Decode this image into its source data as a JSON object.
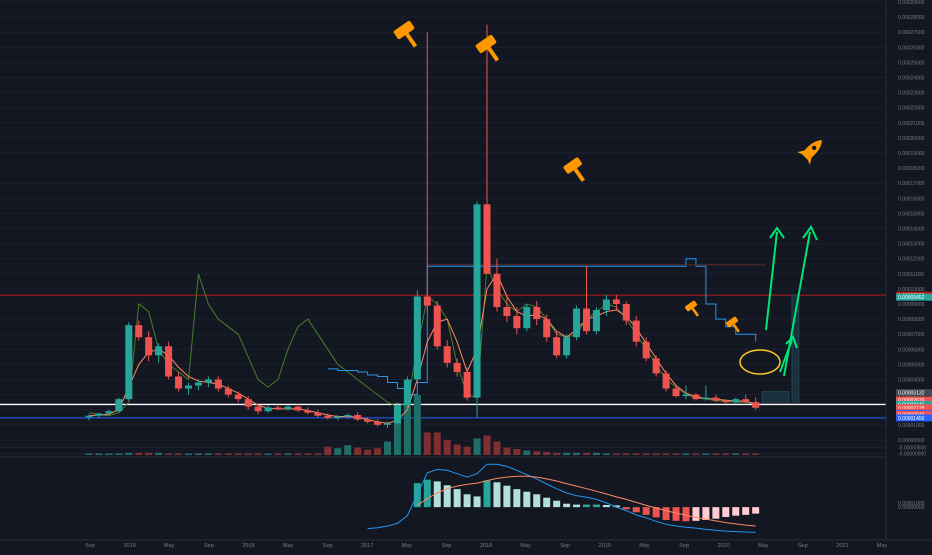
{
  "chart_data": {
    "type": "candlestick",
    "title": "",
    "colors": {
      "background": "#131722",
      "up": "#26a69a",
      "down": "#ef5350",
      "up_volume": "#1f6e68",
      "down_volume": "#7f2f31",
      "hist_up_strong": "#26a69a",
      "hist_up_weak": "#b2dfdb",
      "hist_down_strong": "#ef5350",
      "hist_down_weak": "#ffcdd2",
      "resistance_line": "#b71c1c",
      "support_white": "#ffffff",
      "support_blue": "#2962ff",
      "green_arrows": "#00e676",
      "annotation_orange": "#ff9800"
    },
    "x_axis_labels": [
      "Sep",
      "2019",
      "May",
      "Sep",
      "2018",
      "May",
      "Sep",
      "2017",
      "May",
      "Sep",
      "2018",
      "May",
      "Sep",
      "2019",
      "May",
      "Sep",
      "2020",
      "May",
      "Sep",
      "2021",
      "May"
    ],
    "y_axis": {
      "scale": "linear",
      "ylim": [
        -1e-05,
        0.00029
      ],
      "ticks": [
        "0.00029000",
        "0.00028000",
        "0.00027000",
        "0.00026000",
        "0.00025000",
        "0.00024000",
        "0.00023000",
        "0.00022000",
        "0.00021000",
        "0.00020000",
        "0.00019000",
        "0.00018000",
        "0.00017000",
        "0.00016000",
        "0.00015000",
        "0.00014000",
        "0.00013000",
        "0.00012000",
        "0.00011000",
        "0.00010000",
        "0.00009000",
        "0.00008000",
        "0.00007000",
        "0.00006000",
        "0.00005000",
        "0.00004000",
        "0.00003000",
        "0.00002000",
        "0.00001000",
        "0.00000000",
        "-0.00000500",
        "-0.00000900"
      ]
    },
    "price_badges": [
      {
        "label": "0.00009586",
        "value": 9.586e-05,
        "color": "#b71c1c"
      },
      {
        "label": "0.00009452",
        "value": 9.452e-05,
        "color": "#26a69a"
      },
      {
        "label": "0.00003132",
        "value": 3.132e-05,
        "color": "#444a55"
      },
      {
        "label": "0.00002639",
        "value": 2.639e-05,
        "color": "#ef5350"
      },
      {
        "label": "0.00002348",
        "value": 2.348e-05,
        "color": "#ffffff"
      },
      {
        "label": "0.00002345",
        "value": 2.345e-05,
        "color": "#26a69a"
      },
      {
        "label": "0.00002128",
        "value": 2.128e-05,
        "color": "#ef5350"
      },
      {
        "label": "102.1%",
        "value": 1.82e-05,
        "color": "#ef5350"
      },
      {
        "label": "0.00002127",
        "value": 1.75e-05,
        "color": "#2962ff"
      },
      {
        "label": "0.00002046",
        "value": 1.68e-05,
        "color": "#ef5350"
      },
      {
        "label": "0.00001456",
        "value": 1.456e-05,
        "color": "#2962ff"
      }
    ],
    "horizontal_lines": [
      {
        "value": 9.586e-05,
        "color": "#b71c1c"
      },
      {
        "value": 2.348e-05,
        "color": "#ffffff"
      },
      {
        "value": 1.456e-05,
        "color": "#2962ff"
      }
    ],
    "candles": [
      [
        1.5e-05,
        1.7e-05,
        1.3e-05,
        1.6e-05
      ],
      [
        1.6e-05,
        1.8e-05,
        1.45e-05,
        1.75e-05
      ],
      [
        1.75e-05,
        2e-05,
        1.65e-05,
        1.9e-05
      ],
      [
        1.9e-05,
        2.8e-05,
        1.8e-05,
        2.7e-05
      ],
      [
        2.7e-05,
        7.8e-05,
        2.6e-05,
        7.6e-05
      ],
      [
        7.6e-05,
        7.9e-05,
        6.6e-05,
        6.8e-05
      ],
      [
        6.8e-05,
        7.2e-05,
        5.2e-05,
        5.6e-05
      ],
      [
        5.6e-05,
        6.4e-05,
        5.1e-05,
        6.2e-05
      ],
      [
        6.2e-05,
        6.5e-05,
        4e-05,
        4.2e-05
      ],
      [
        4.2e-05,
        4.5e-05,
        3.2e-05,
        3.4e-05
      ],
      [
        3.4e-05,
        3.8e-05,
        3e-05,
        3.6e-05
      ],
      [
        3.6e-05,
        4e-05,
        3.3e-05,
        3.8e-05
      ],
      [
        3.8e-05,
        4.2e-05,
        3.5e-05,
        4e-05
      ],
      [
        4e-05,
        4.2e-05,
        3.2e-05,
        3.4e-05
      ],
      [
        3.4e-05,
        3.6e-05,
        2.8e-05,
        3e-05
      ],
      [
        3e-05,
        3.2e-05,
        2.5e-05,
        2.7e-05
      ],
      [
        2.7e-05,
        2.9e-05,
        2e-05,
        2.2e-05
      ],
      [
        2.2e-05,
        2.4e-05,
        1.7e-05,
        1.9e-05
      ],
      [
        1.9e-05,
        2.3e-05,
        1.8e-05,
        2.15e-05
      ],
      [
        2.15e-05,
        2.35e-05,
        1.95e-05,
        2.05e-05
      ],
      [
        2.05e-05,
        2.3e-05,
        1.95e-05,
        2.2e-05
      ],
      [
        2.2e-05,
        2.4e-05,
        1.85e-05,
        1.95e-05
      ],
      [
        1.95e-05,
        2.15e-05,
        1.7e-05,
        1.8e-05
      ],
      [
        1.8e-05,
        2e-05,
        1.5e-05,
        1.6e-05
      ],
      [
        1.6e-05,
        1.75e-05,
        1.35e-05,
        1.45e-05
      ],
      [
        1.45e-05,
        1.65e-05,
        1.3e-05,
        1.55e-05
      ],
      [
        1.55e-05,
        1.75e-05,
        1.4e-05,
        1.65e-05
      ],
      [
        1.65e-05,
        1.85e-05,
        1.25e-05,
        1.35e-05
      ],
      [
        1.35e-05,
        1.5e-05,
        1.1e-05,
        1.2e-05
      ],
      [
        1.2e-05,
        1.35e-05,
        9e-06,
        1e-05
      ],
      [
        1e-05,
        1.2e-05,
        8e-06,
        1.1e-05
      ],
      [
        1.1e-05,
        2.5e-05,
        1e-05,
        2.3e-05
      ],
      [
        2.3e-05,
        4.2e-05,
        2e-05,
        4e-05
      ],
      [
        4e-05,
        9.9e-05,
        3.8e-05,
        9.5e-05
      ],
      [
        9.5e-05,
        0.00027,
        8.5e-05,
        8.9e-05
      ],
      [
        8.9e-05,
        9.2e-05,
        6e-05,
        6.2e-05
      ],
      [
        6.2e-05,
        6.6e-05,
        4.8e-05,
        5.1e-05
      ],
      [
        5.1e-05,
        5.4e-05,
        4.2e-05,
        4.5e-05
      ],
      [
        4.5e-05,
        4.8e-05,
        2.6e-05,
        2.8e-05
      ],
      [
        2.8e-05,
        0.000158,
        1.5e-05,
        0.000156
      ],
      [
        0.000156,
        0.000275,
        0.00011,
        0.00011
      ],
      [
        0.00011,
        0.00012,
        8.5e-05,
        8.8e-05
      ],
      [
        8.8e-05,
        9.6e-05,
        7.8e-05,
        8.2e-05
      ],
      [
        8.2e-05,
        8.8e-05,
        7e-05,
        7.4e-05
      ],
      [
        7.4e-05,
        9e-05,
        7.2e-05,
        8.8e-05
      ],
      [
        8.8e-05,
        9.2e-05,
        7.6e-05,
        8e-05
      ],
      [
        8e-05,
        8.3e-05,
        6.5e-05,
        6.8e-05
      ],
      [
        6.8e-05,
        7.2e-05,
        5.4e-05,
        5.6e-05
      ],
      [
        5.6e-05,
        7e-05,
        5.4e-05,
        6.8e-05
      ],
      [
        6.8e-05,
        8.9e-05,
        6.6e-05,
        8.7e-05
      ],
      [
        8.7e-05,
        0.000115,
        7e-05,
        7.2e-05
      ],
      [
        7.2e-05,
        8.8e-05,
        7e-05,
        8.6e-05
      ],
      [
        8.6e-05,
        9.6e-05,
        8.2e-05,
        9.3e-05
      ],
      [
        9.3e-05,
        9.6e-05,
        8.6e-05,
        9e-05
      ],
      [
        9e-05,
        9.2e-05,
        7.6e-05,
        7.9e-05
      ],
      [
        7.9e-05,
        8.2e-05,
        6.2e-05,
        6.5e-05
      ],
      [
        6.5e-05,
        6.8e-05,
        5.2e-05,
        5.4e-05
      ],
      [
        5.4e-05,
        5.6e-05,
        4.2e-05,
        4.4e-05
      ],
      [
        4.4e-05,
        4.6e-05,
        3.2e-05,
        3.4e-05
      ],
      [
        3.4e-05,
        3.6e-05,
        2.8e-05,
        2.9e-05
      ],
      [
        2.9e-05,
        3.6e-05,
        2.7e-05,
        3e-05
      ],
      [
        3e-05,
        3.1e-05,
        2.6e-05,
        2.7e-05
      ],
      [
        2.7e-05,
        3.6e-05,
        2.6e-05,
        2.8e-05
      ],
      [
        2.8e-05,
        3e-05,
        2.5e-05,
        2.6e-05
      ],
      [
        2.6e-05,
        2.7e-05,
        2.4e-05,
        2.5e-05
      ],
      [
        2.5e-05,
        2.8e-05,
        2.4e-05,
        2.7e-05
      ],
      [
        2.7e-05,
        3e-05,
        2.4e-05,
        2.5e-05
      ],
      [
        2.5e-05,
        2.8e-05,
        2e-05,
        2.13e-05
      ]
    ],
    "forecast_boxes": [
      {
        "start_index": 68,
        "end_index": 70,
        "low": 2.5e-05,
        "high": 3.2e-05
      },
      {
        "start_index": 71,
        "end_index": 71,
        "low": 2.5e-05,
        "high": 9.6e-05
      }
    ],
    "indicator_lines": [
      {
        "name": "",
        "color": "#4a7c2a",
        "values": [
          1.8e-05,
          1.7e-05,
          1.6e-05,
          1.8e-05,
          2.5e-05,
          9e-05,
          8.5e-05,
          6e-05,
          5e-05,
          4.5e-05,
          4e-05,
          0.00011,
          9e-05,
          8e-05,
          7.5e-05,
          7e-05,
          5.5e-05,
          4e-05,
          3.5e-05,
          4e-05,
          6e-05,
          7.5e-05,
          8e-05,
          7e-05,
          6e-05,
          5e-05,
          4.5e-05,
          4e-05,
          3.5e-05,
          3e-05,
          2.5e-05,
          2.2e-05,
          2.5e-05,
          6e-05,
          9.5e-05,
          9e-05,
          8e-05,
          5e-05,
          3e-05,
          2.8e-05,
          0.000115,
          0.0001,
          9e-05,
          8.5e-05,
          9e-05,
          8.8e-05,
          8e-05,
          7e-05,
          6.8e-05,
          7e-05,
          8e-05,
          8.5e-05,
          9e-05,
          8.8e-05,
          8e-05,
          7e-05,
          6e-05,
          5e-05,
          4e-05,
          3.5e-05,
          3e-05,
          2.8e-05,
          2.7e-05,
          2.6e-05,
          2.55e-05,
          2.5e-05,
          2.5e-05,
          2.4e-05
        ]
      },
      {
        "name": "",
        "color": "#2196f3",
        "values": [
          null,
          null,
          null,
          null,
          null,
          null,
          null,
          null,
          null,
          null,
          null,
          null,
          null,
          null,
          null,
          null,
          null,
          null,
          null,
          null,
          null,
          null,
          null,
          null,
          4.7e-05,
          4.6e-05,
          4.6e-05,
          4.5e-05,
          4.3e-05,
          4.2e-05,
          3.8e-05,
          3.4e-05,
          3e-05,
          3.8e-05,
          0.000115,
          0.000115,
          0.000115,
          0.000115,
          0.000115,
          0.000115,
          0.000115,
          0.000115,
          0.000115,
          0.000115,
          0.000115,
          0.000115,
          0.000115,
          0.000115,
          0.000115,
          0.000115,
          0.000115,
          0.000115,
          0.000115,
          0.000115,
          0.000115,
          0.000115,
          0.000115,
          0.000115,
          0.000115,
          0.000115,
          0.00012,
          0.000115,
          9e-05,
          8e-05,
          7.5e-05,
          7e-05,
          7e-05,
          6.5e-05
        ]
      },
      {
        "name": "",
        "color": "#ff8a65",
        "values": [
          1.6e-05,
          1.65e-05,
          1.7e-05,
          2e-05,
          3.5e-05,
          5e-05,
          5.8e-05,
          6e-05,
          5.6e-05,
          4.8e-05,
          4.2e-05,
          3.9e-05,
          3.8e-05,
          3.7e-05,
          3.4e-05,
          3.1e-05,
          2.7e-05,
          2.3e-05,
          2.1e-05,
          2.05e-05,
          2.05e-05,
          2.05e-05,
          1.95e-05,
          1.8e-05,
          1.65e-05,
          1.55e-05,
          1.55e-05,
          1.5e-05,
          1.35e-05,
          1.2e-05,
          1.1e-05,
          1.3e-05,
          2e-05,
          4e-05,
          6.5e-05,
          7.8e-05,
          8e-05,
          6.5e-05,
          4.5e-05,
          6e-05,
          0.0001,
          0.00011,
          9.5e-05,
          8.5e-05,
          8.2e-05,
          8.3e-05,
          8e-05,
          7.2e-05,
          6.8e-05,
          7.3e-05,
          8e-05,
          8.2e-05,
          8.5e-05,
          8.6e-05,
          8.2e-05,
          7.4e-05,
          6.4e-05,
          5.4e-05,
          4.4e-05,
          3.6e-05,
          3.1e-05,
          2.85e-05,
          2.75e-05,
          2.7e-05,
          2.62e-05,
          2.58e-05,
          2.56e-05,
          2.4e-05
        ]
      }
    ],
    "volume": [
      2,
      2,
      2,
      2,
      3,
      3,
      3,
      3,
      2,
      2,
      2,
      2,
      2,
      2,
      2,
      2,
      2,
      2,
      2,
      2,
      2,
      2,
      2,
      2,
      2,
      2,
      2,
      2,
      2,
      2,
      2,
      3,
      9,
      25,
      28,
      8,
      8,
      10,
      8,
      5,
      6,
      9,
      7,
      4,
      4,
      4,
      3,
      3,
      3,
      3,
      3,
      3,
      2,
      2,
      2,
      2,
      2,
      2,
      2,
      2,
      2,
      2,
      2,
      2,
      2,
      2,
      2,
      2
    ],
    "volume_extra": [
      {
        "index": 24,
        "value": 11
      },
      {
        "index": 25,
        "value": 9
      },
      {
        "index": 26,
        "value": 13
      },
      {
        "index": 27,
        "value": 10
      },
      {
        "index": 28,
        "value": 7
      },
      {
        "index": 29,
        "value": 9
      },
      {
        "index": 30,
        "value": 18
      },
      {
        "index": 31,
        "value": 60
      },
      {
        "index": 32,
        "value": 75
      },
      {
        "index": 33,
        "value": 80
      },
      {
        "index": 34,
        "value": 30
      },
      {
        "index": 35,
        "value": 30
      },
      {
        "index": 36,
        "value": 20
      },
      {
        "index": 37,
        "value": 14
      },
      {
        "index": 38,
        "value": 11
      },
      {
        "index": 39,
        "value": 22
      },
      {
        "index": 40,
        "value": 26
      },
      {
        "index": 41,
        "value": 18
      },
      {
        "index": 42,
        "value": 10
      },
      {
        "index": 43,
        "value": 8
      },
      {
        "index": 44,
        "value": 6
      },
      {
        "index": 45,
        "value": 5
      },
      {
        "index": 46,
        "value": 4
      }
    ],
    "macd": {
      "histogram": [
        null,
        null,
        null,
        null,
        null,
        null,
        null,
        null,
        null,
        null,
        null,
        null,
        null,
        null,
        null,
        null,
        null,
        null,
        null,
        null,
        null,
        null,
        null,
        null,
        null,
        null,
        null,
        null,
        null,
        null,
        null,
        null,
        null,
        5.6e-05,
        6.4e-05,
        6e-05,
        5.1e-05,
        4.2e-05,
        3e-05,
        2.5e-05,
        6.2e-05,
        5.8e-05,
        5e-05,
        4.2e-05,
        3.6e-05,
        3e-05,
        2.2e-05,
        1.5e-05,
        8e-06,
        6e-06,
        6e-06,
        6e-06,
        5e-06,
        4e-06,
        -5e-06,
        -1.2e-05,
        -1.8e-05,
        -2.4e-05,
        -3e-05,
        -3.2e-05,
        -3.3e-05,
        -3.2e-05,
        -3e-05,
        -2.7e-05,
        -2.3e-05,
        -2e-05,
        -1.8e-05,
        -1.5e-05
      ],
      "macd_line": [
        null,
        null,
        null,
        null,
        null,
        null,
        null,
        null,
        null,
        null,
        null,
        null,
        null,
        null,
        null,
        null,
        null,
        null,
        null,
        null,
        null,
        null,
        null,
        null,
        null,
        null,
        null,
        null,
        -5e-05,
        -4.8e-05,
        -4.4e-05,
        -3.8e-05,
        -2e-05,
        3e-05,
        8e-05,
        8.8e-05,
        8.6e-05,
        7.8e-05,
        7e-05,
        7.8e-05,
        0.0001,
        0.0001,
        9.5e-05,
        8.6e-05,
        7.6e-05,
        6.6e-05,
        5.4e-05,
        4.3e-05,
        3.3e-05,
        2.7e-05,
        2.3e-05,
        1.8e-05,
        1e-05,
        0.0,
        -8e-06,
        -1.8e-05,
        -2.5e-05,
        -3.3e-05,
        -4e-05,
        -4.4e-05,
        -4.7e-05,
        -4.9e-05,
        -5.2e-05,
        -5.4e-05,
        -5.6e-05,
        -5.7e-05,
        -5.8e-05,
        -5.9e-05
      ],
      "signal_line": [
        null,
        null,
        null,
        null,
        null,
        null,
        null,
        null,
        null,
        null,
        null,
        null,
        null,
        null,
        null,
        null,
        null,
        null,
        null,
        null,
        null,
        null,
        null,
        null,
        null,
        null,
        null,
        null,
        null,
        null,
        null,
        null,
        null,
        4e-06,
        2e-05,
        3.3e-05,
        4.3e-05,
        4.9e-05,
        5.3e-05,
        5.6e-05,
        6.2e-05,
        6.7e-05,
        7e-05,
        7.2e-05,
        7.2e-05,
        7e-05,
        6.6e-05,
        6.1e-05,
        5.5e-05,
        4.9e-05,
        4.3e-05,
        3.7e-05,
        3.1e-05,
        2.4e-05,
        1.8e-05,
        1.1e-05,
        4e-06,
        -2e-06,
        -8e-06,
        -1.4e-05,
        -1.9e-05,
        -2.4e-05,
        -2.8e-05,
        -3.2e-05,
        -3.6e-05,
        -3.9e-05,
        -4.2e-05,
        -4.4e-05
      ]
    },
    "macd_axis_ticks": [
      "0.00001000",
      "0.00000000"
    ]
  }
}
